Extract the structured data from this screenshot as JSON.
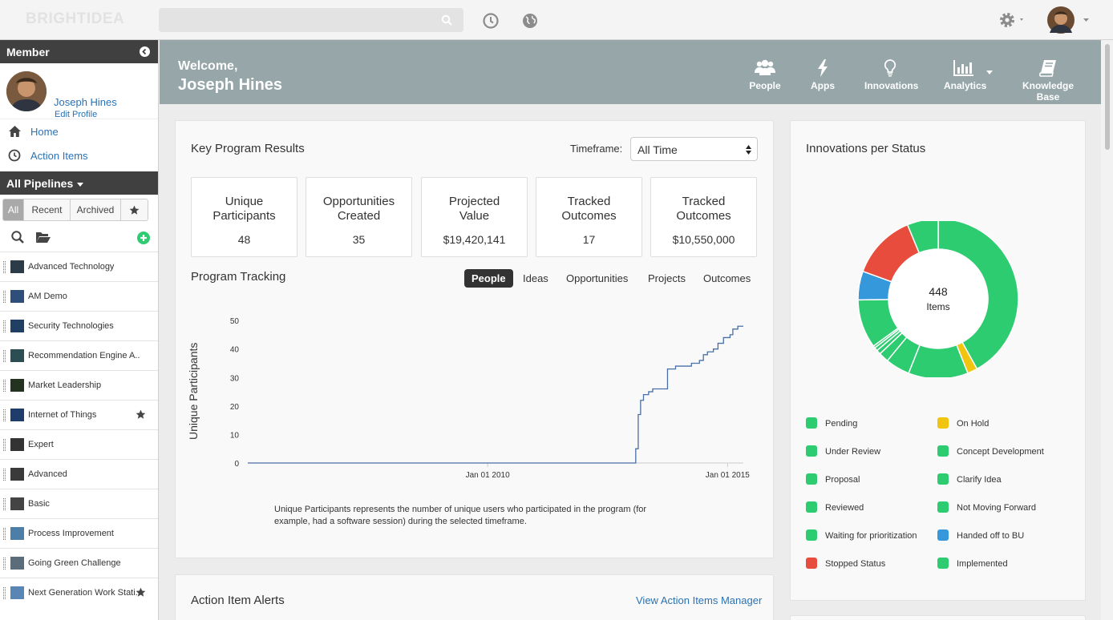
{
  "app": {
    "logo_text": "BRIGHTIDEA"
  },
  "sidebar": {
    "section_title": "Member",
    "user_name": "Joseph Hines",
    "edit_profile": "Edit Profile",
    "nav": [
      {
        "label": "Home",
        "icon": "home-icon"
      },
      {
        "label": "Action Items",
        "icon": "clock-icon"
      }
    ],
    "pipelines_title": "All Pipelines",
    "filters": [
      "All",
      "Recent",
      "Archived"
    ],
    "active_filter": "All",
    "pipelines": [
      {
        "label": "Advanced Technology",
        "starred": false
      },
      {
        "label": "AM Demo",
        "starred": false
      },
      {
        "label": "Security Technologies",
        "starred": false
      },
      {
        "label": "Recommendation Engine A...",
        "starred": false
      },
      {
        "label": "Market Leadership",
        "starred": false
      },
      {
        "label": "Internet of Things",
        "starred": true
      },
      {
        "label": "Expert",
        "starred": false
      },
      {
        "label": "Advanced",
        "starred": false
      },
      {
        "label": "Basic",
        "starred": false
      },
      {
        "label": "Process Improvement",
        "starred": false
      },
      {
        "label": "Going Green Challenge",
        "starred": false
      },
      {
        "label": "Next Generation Work Stati...",
        "starred": true
      }
    ]
  },
  "header": {
    "welcome": "Welcome,",
    "name": "Joseph Hines",
    "nav": [
      "People",
      "Apps",
      "Innovations",
      "Analytics",
      "Knowledge Base"
    ]
  },
  "key_results": {
    "title": "Key Program Results",
    "timeframe_label": "Timeframe:",
    "timeframe_value": "All Time",
    "kpis": [
      {
        "label": "Unique Participants",
        "value": "48"
      },
      {
        "label": "Opportunities Created",
        "value": "35"
      },
      {
        "label": "Projected Value",
        "value": "$19,420,141"
      },
      {
        "label": "Tracked Outcomes",
        "value": "17"
      },
      {
        "label": "Tracked Outcomes",
        "value": "$10,550,000"
      }
    ]
  },
  "tracking": {
    "title": "Program Tracking",
    "tabs": [
      "People",
      "Ideas",
      "Opportunities",
      "Projects",
      "Outcomes"
    ],
    "active_tab": "People",
    "footnote": "Unique Participants represents the number of unique users who participated in the program (for example, had a software session) during the selected timeframe."
  },
  "chart_data": [
    {
      "type": "line",
      "title": "",
      "xlabel": "",
      "ylabel": "Unique Participants",
      "x_ticks": [
        "Jan 01 2010",
        "Jan 01 2015"
      ],
      "y_ticks": [
        0,
        10,
        20,
        30,
        40,
        50
      ],
      "ylim": [
        0,
        52
      ],
      "grid": false,
      "series": [
        {
          "color": "#4a6fa5",
          "points": [
            [
              "2005-01-01",
              0
            ],
            [
              "2013-01-15",
              0
            ],
            [
              "2013-02-01",
              5
            ],
            [
              "2013-02-20",
              17
            ],
            [
              "2013-03-10",
              22
            ],
            [
              "2013-04-01",
              24
            ],
            [
              "2013-05-10",
              25
            ],
            [
              "2013-06-10",
              26
            ],
            [
              "2013-09-20",
              26
            ],
            [
              "2013-10-01",
              33
            ],
            [
              "2013-12-01",
              34
            ],
            [
              "2014-03-01",
              34
            ],
            [
              "2014-04-01",
              35
            ],
            [
              "2014-06-01",
              36
            ],
            [
              "2014-07-01",
              38
            ],
            [
              "2014-08-01",
              39
            ],
            [
              "2014-09-15",
              40
            ],
            [
              "2014-10-20",
              42
            ],
            [
              "2014-12-01",
              44
            ],
            [
              "2015-01-20",
              45
            ],
            [
              "2015-02-10",
              47
            ],
            [
              "2015-03-20",
              48
            ],
            [
              "2015-05-01",
              48
            ]
          ]
        }
      ]
    },
    {
      "type": "pie",
      "title": "Innovations per Status",
      "center_value": "448",
      "center_label": "Items",
      "legend_position": "bottom",
      "slices": [
        {
          "label": "Pending",
          "value": 188,
          "color": "#2ecc71"
        },
        {
          "label": "On Hold",
          "value": 9,
          "color": "#f1c40f"
        },
        {
          "label": "Under Review",
          "value": 54,
          "color": "#2ecc71"
        },
        {
          "label": "Concept Development",
          "value": 22,
          "color": "#2ecc71"
        },
        {
          "label": "Proposal",
          "value": 9,
          "color": "#2ecc71"
        },
        {
          "label": "Clarify Idea",
          "value": 4,
          "color": "#2ecc71"
        },
        {
          "label": "Reviewed",
          "value": 3,
          "color": "#2ecc71"
        },
        {
          "label": "Not Moving Forward",
          "value": 2,
          "color": "#2ecc71"
        },
        {
          "label": "Waiting for prioritization",
          "value": 44,
          "color": "#2ecc71"
        },
        {
          "label": "Handed off to BU",
          "value": 26,
          "color": "#3498db"
        },
        {
          "label": "Stopped Status",
          "value": 59,
          "color": "#e74c3c"
        },
        {
          "label": "Implemented",
          "value": 28,
          "color": "#2ecc71"
        }
      ]
    }
  ],
  "status_card": {
    "title": "Innovations per Status",
    "legend": [
      {
        "label": "Pending",
        "color": "#2ecc71"
      },
      {
        "label": "On Hold",
        "color": "#f1c40f"
      },
      {
        "label": "Under Review",
        "color": "#2ecc71"
      },
      {
        "label": "Concept Development",
        "color": "#2ecc71"
      },
      {
        "label": "Proposal",
        "color": "#2ecc71"
      },
      {
        "label": "Clarify Idea",
        "color": "#2ecc71"
      },
      {
        "label": "Reviewed",
        "color": "#2ecc71"
      },
      {
        "label": "Not Moving Forward",
        "color": "#2ecc71"
      },
      {
        "label": "Waiting for prioritization",
        "color": "#2ecc71"
      },
      {
        "label": "Handed off to BU",
        "color": "#3498db"
      },
      {
        "label": "Stopped Status",
        "color": "#e74c3c"
      },
      {
        "label": "Implemented",
        "color": "#2ecc71"
      }
    ]
  },
  "alerts": {
    "title": "Action Item Alerts",
    "link": "View Action Items Manager"
  }
}
